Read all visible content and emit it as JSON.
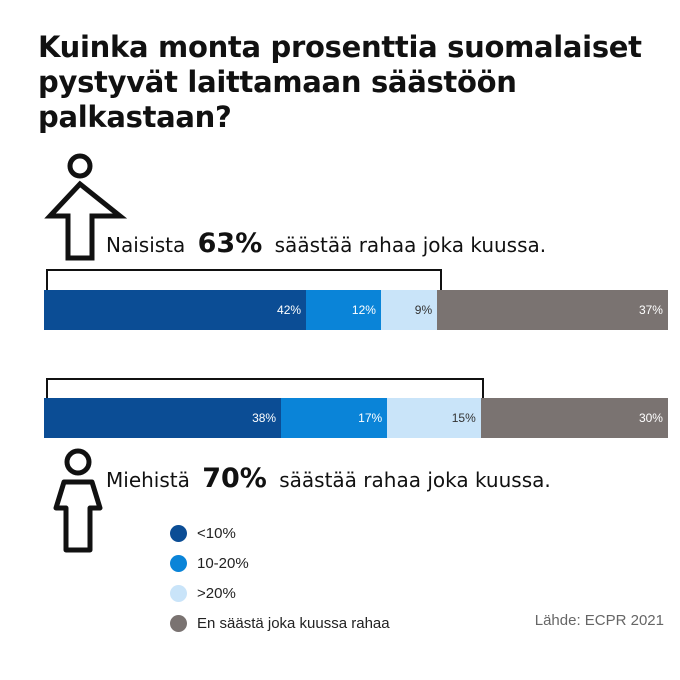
{
  "title": "Kuinka monta prosenttia suomalaiset pystyvät laittamaan säästöön palkastaan?",
  "women": {
    "prefix": "Naisista",
    "percent": "63%",
    "suffix": "säästää rahaa joka kuussa."
  },
  "men": {
    "prefix": "Miehistä",
    "percent": "70%",
    "suffix": "säästää rahaa joka kuussa."
  },
  "source": "Lähde: ECPR 2021",
  "icons": {
    "women": "woman-figure-icon",
    "men": "man-figure-icon"
  },
  "chart_data": {
    "type": "bar",
    "stacked": true,
    "orientation": "horizontal",
    "categories": [
      "Naiset",
      "Miehet"
    ],
    "series": [
      {
        "name": "<10%",
        "color": "#0b4d95",
        "values": [
          42,
          38
        ],
        "labels": [
          "42%",
          "38%"
        ]
      },
      {
        "name": "10-20%",
        "color": "#0a84d8",
        "values": [
          12,
          17
        ],
        "labels": [
          "12%",
          "17%"
        ]
      },
      {
        "name": ">20%",
        "color": "#c9e4f9",
        "values": [
          9,
          15
        ],
        "labels": [
          "9%",
          "15%"
        ]
      },
      {
        "name": "En säästä joka kuussa rahaa",
        "color": "#7a7371",
        "values": [
          37,
          30
        ],
        "labels": [
          "37%",
          "30%"
        ]
      }
    ],
    "xlim": [
      0,
      100
    ]
  }
}
